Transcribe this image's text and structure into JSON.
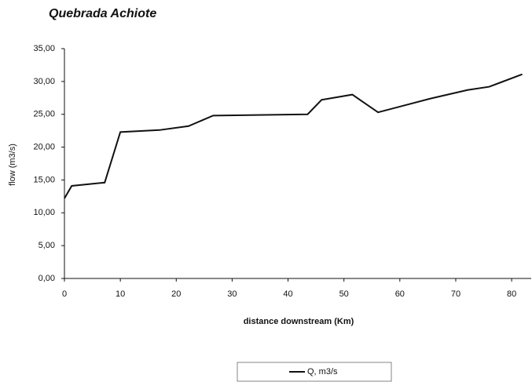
{
  "chart_data": {
    "type": "line",
    "title": "Quebrada Achiote",
    "x_label": "distance downstream (Km)",
    "y_label": "flow (m3/s)",
    "x": [
      0,
      1.3,
      7.2,
      10,
      17,
      22.2,
      26.6,
      43.5,
      46,
      51.5,
      56.1,
      65.5,
      72.1,
      76,
      81.9
    ],
    "series": [
      {
        "name": "Q, m3/s",
        "color": "#111111",
        "values": [
          12.2,
          14.1,
          14.6,
          22.3,
          22.6,
          23.2,
          24.8,
          25.0,
          27.2,
          28.0,
          25.3,
          27.4,
          28.7,
          29.2,
          31.1
        ]
      }
    ],
    "xlim": [
      0,
      83.5
    ],
    "xticks": [
      0,
      10,
      20,
      30,
      40,
      50,
      60,
      70,
      80
    ],
    "ylim": [
      0,
      35
    ],
    "yticks": [
      {
        "value": 0,
        "label": "0,00"
      },
      {
        "value": 5,
        "label": "5,00"
      },
      {
        "value": 10,
        "label": "10,00"
      },
      {
        "value": 15,
        "label": "15,00"
      },
      {
        "value": 20,
        "label": "20,00"
      },
      {
        "value": 25,
        "label": "25,00"
      },
      {
        "value": 30,
        "label": "30,00"
      },
      {
        "value": 35,
        "label": "35,00"
      }
    ],
    "legend": "bottom"
  }
}
